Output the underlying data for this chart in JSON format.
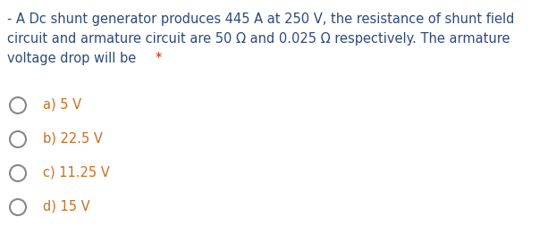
{
  "question_text_lines": [
    "- A Dc shunt generator produces 445 A at 250 V, the resistance of shunt field",
    "circuit and armature circuit are 50 Ω and 0.025 Ω respectively. The armature",
    "voltage drop will be "
  ],
  "question_asterisk": "*",
  "options": [
    "a) 5 V",
    "b) 22.5 V",
    "c) 11.25 V",
    "d) 15 V"
  ],
  "background_color": "#ffffff",
  "question_color": "#2d4a7a",
  "asterisk_color": "#cc2200",
  "option_color": "#c87020",
  "circle_edge_color": "#888888",
  "font_size_question": 10.5,
  "font_size_options": 10.5,
  "fig_width": 6.13,
  "fig_height": 2.71,
  "dpi": 100
}
